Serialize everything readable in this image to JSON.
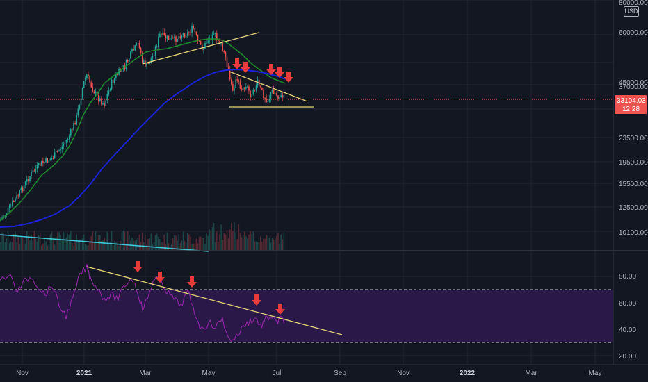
{
  "price_axis": {
    "currency_label": "USD",
    "ticks": [
      "80000.00",
      "60000.00",
      "45000.00",
      "37000.00",
      "33104.03",
      "23500.00",
      "19500.00",
      "15500.00",
      "12500.00",
      "10100.00"
    ],
    "current_price": "33104.03",
    "countdown": "12:28"
  },
  "rsi_axis": {
    "ticks": [
      "80.00",
      "60.00",
      "40.00",
      "20.00"
    ]
  },
  "time_axis": {
    "ticks": [
      "Nov",
      "2021",
      "Mar",
      "May",
      "Jul",
      "Sep",
      "Nov",
      "2022",
      "Mar",
      "May"
    ]
  },
  "colors": {
    "background": "#131722",
    "ema_green": "#1e8c2d",
    "ema_blue": "#1a22d8",
    "trendline_yellow": "#e8d57a",
    "cyan_line": "#3ec6d8",
    "arrow_red": "#e83b3b",
    "rsi_purple": "#9c27b0",
    "rsi_band": "#2a1848",
    "price_tag_red": "#ef5350"
  },
  "annotations": {
    "price_arrows": 5,
    "rsi_arrows": 5
  }
}
